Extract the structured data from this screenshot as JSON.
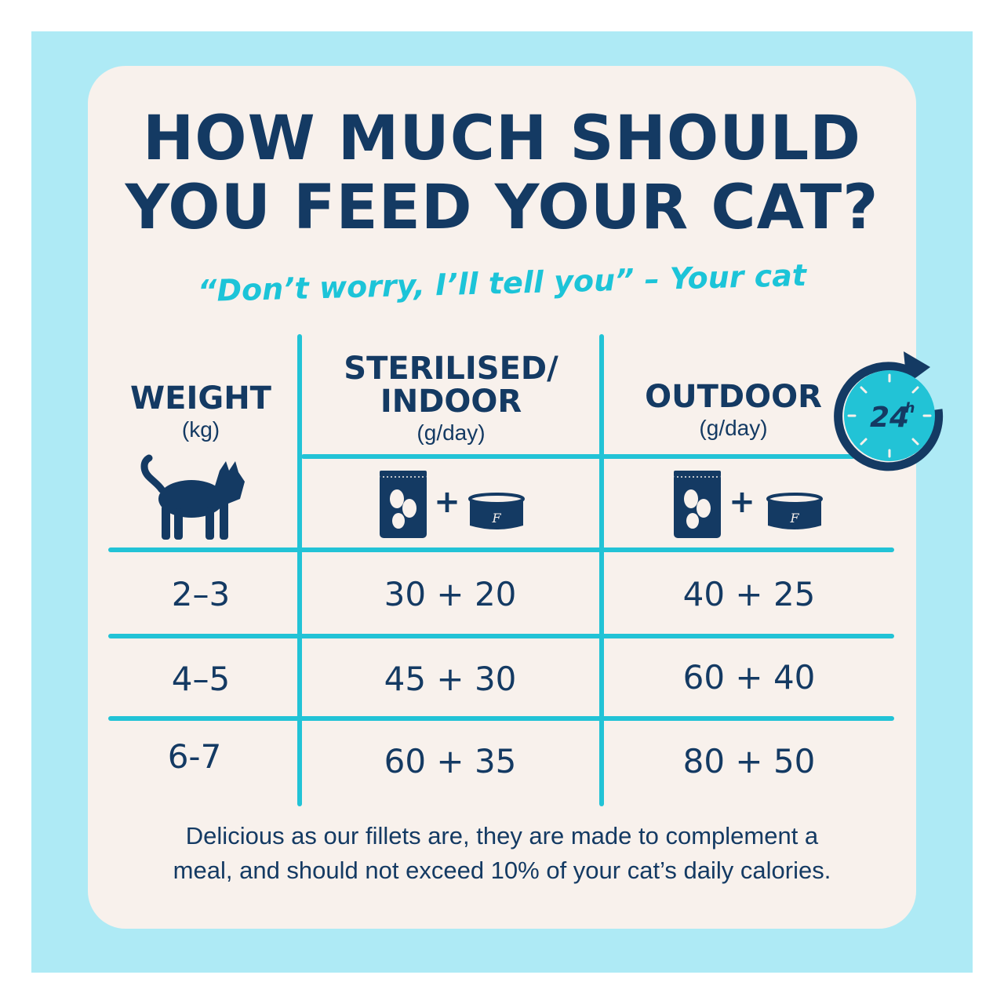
{
  "title": {
    "line1": "HOW MUCH SHOULD",
    "line2": "YOU FEED YOUR CAT?"
  },
  "subtitle": "“Don’t worry, I’ll tell you” – Your cat",
  "table": {
    "columns": [
      {
        "label": "WEIGHT",
        "unit": "(kg)"
      },
      {
        "label_line1": "STERILISED/",
        "label_line2": "INDOOR",
        "unit": "(g/day)"
      },
      {
        "label": "OUTDOOR",
        "unit": "(g/day)"
      }
    ],
    "rows": [
      {
        "weight": "2–3",
        "indoor": "30 + 20",
        "outdoor": "40 + 25"
      },
      {
        "weight": "4–5",
        "indoor": "45 + 30",
        "outdoor": "60 + 40"
      },
      {
        "weight": "6-7",
        "indoor": "60 + 35",
        "outdoor": "80 + 50"
      }
    ],
    "plus": "+",
    "can_letter": "F",
    "clock_label": "24",
    "clock_sup": "h"
  },
  "colors": {
    "navy": "#143a63",
    "teal": "#22c3d6",
    "card": "#f8f1ec",
    "background": "#aeeaf5"
  },
  "icons": [
    "cat-silhouette-icon",
    "food-bag-icon",
    "food-can-icon",
    "24h-clock-icon"
  ],
  "note": {
    "line1": "Delicious as our fillets are, they are made to complement a",
    "line2": "meal, and should not exceed 10% of your cat’s daily calories."
  }
}
